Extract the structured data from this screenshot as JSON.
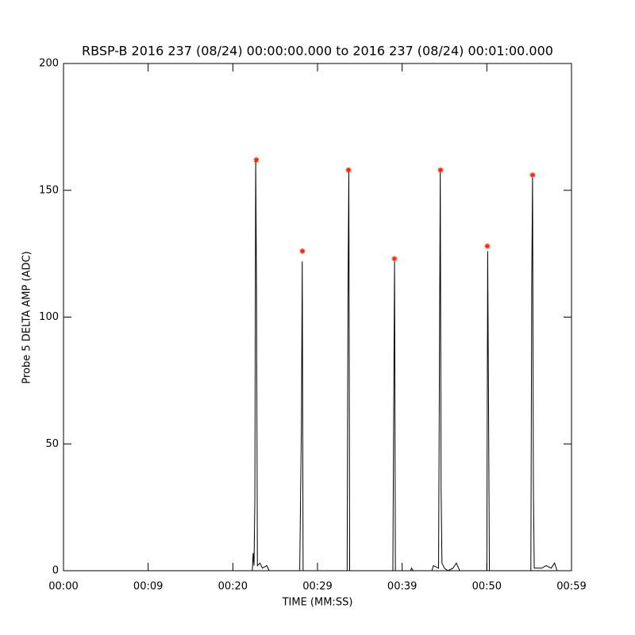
{
  "chart_data": {
    "type": "line",
    "title": "RBSP-B 2016 237 (08/24) 00:00:00.000 to 2016 237 (08/24) 00:01:00.000",
    "x_label": "TIME (MM:SS)",
    "y_label": "Probe 5 DELTA AMP (ADC)",
    "xlim": [
      0,
      60
    ],
    "xticks": [
      {
        "value": 0,
        "label": "00:00"
      },
      {
        "value": 10,
        "label": "00:09"
      },
      {
        "value": 20,
        "label": "00:20"
      },
      {
        "value": 30,
        "label": "00:29"
      },
      {
        "value": 40,
        "label": "00:39"
      },
      {
        "value": 50,
        "label": "00:50"
      },
      {
        "value": 60,
        "label": "00:59"
      }
    ],
    "ylim": [
      0,
      200
    ],
    "yticks": [
      0,
      50,
      100,
      150,
      200
    ],
    "grid": false,
    "series": [
      {
        "style": "line",
        "color": "#000000",
        "x": [
          0,
          22.3,
          22.4,
          22.5,
          22.6,
          22.7,
          22.8,
          22.9,
          23.2,
          23.5,
          24.0,
          24.3,
          27.9,
          28.1,
          28.2,
          28.3,
          33.5,
          33.6,
          33.7,
          33.8,
          38.9,
          39.0,
          39.1,
          39.2,
          41.0,
          41.1,
          41.3,
          43.5,
          43.7,
          44.3,
          44.5,
          44.6,
          44.7,
          45.0,
          45.4,
          46.0,
          46.4,
          46.8,
          50.0,
          50.1,
          50.2,
          50.3,
          55.2,
          55.3,
          55.4,
          55.5,
          55.6,
          56.5,
          57.0,
          57.6,
          58.0,
          58.3,
          60
        ],
        "values": [
          0,
          0,
          7,
          2,
          28,
          162,
          109,
          2,
          3,
          1,
          2,
          0,
          0,
          58,
          122,
          0,
          0,
          107,
          158,
          0,
          0,
          63,
          122,
          0,
          0,
          1,
          0,
          0,
          2,
          1,
          158,
          32,
          3,
          1,
          0,
          1,
          3,
          0,
          0,
          126,
          66,
          0,
          0,
          111,
          156,
          33,
          1,
          1,
          2,
          1,
          3,
          0,
          0
        ]
      },
      {
        "style": "marker",
        "color": "#ff2200",
        "x": [
          22.78,
          28.22,
          33.66,
          39.09,
          44.53,
          50.06,
          55.41
        ],
        "values": [
          162,
          126,
          158,
          123,
          158,
          128,
          156
        ]
      }
    ]
  }
}
